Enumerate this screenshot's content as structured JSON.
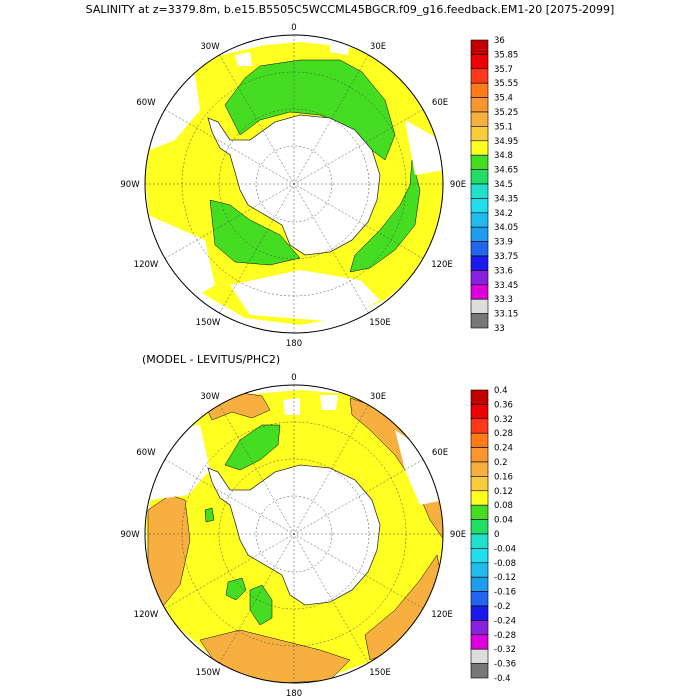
{
  "header": {
    "title": "SALINITY at z=3379.8m, b.e15.B5505C5WCCML45BGCR.f09_g16.feedback.EM1-20 [2075-2099]",
    "subtitle": "(MODEL - LEVITUS/PHC2)"
  },
  "maps": [
    {
      "name": "salinity",
      "lon_labels": [
        "0",
        "30E",
        "60E",
        "90E",
        "120E",
        "150E",
        "180",
        "150W",
        "120W",
        "90W",
        "60W",
        "30W"
      ],
      "colorbar": {
        "levels": [
          "36",
          "35.85",
          "35.7",
          "35.55",
          "35.4",
          "35.25",
          "35.1",
          "34.95",
          "34.8",
          "34.65",
          "34.5",
          "34.35",
          "34.2",
          "34.05",
          "33.9",
          "33.75",
          "33.6",
          "33.45",
          "33.3",
          "33.15",
          "33"
        ],
        "colors": [
          "#c00000",
          "#ee0000",
          "#ff3a1c",
          "#ff7a18",
          "#fa9530",
          "#f7b040",
          "#f8cc3c",
          "#ffff22",
          "#44dd22",
          "#22dd66",
          "#22e0cc",
          "#22ddee",
          "#22bbee",
          "#1e9cee",
          "#2266ee",
          "#1a1aee",
          "#8822dd",
          "#dd00dd",
          "#dddddd",
          "#777777"
        ]
      }
    },
    {
      "name": "difference",
      "lon_labels": [
        "0",
        "30E",
        "60E",
        "90E",
        "120E",
        "150E",
        "180",
        "150W",
        "120W",
        "90W",
        "60W",
        "30W"
      ],
      "colorbar": {
        "levels": [
          "0.4",
          "0.36",
          "0.32",
          "0.28",
          "0.24",
          "0.2",
          "0.16",
          "0.12",
          "0.08",
          "0.04",
          "0",
          "-0.04",
          "-0.08",
          "-0.12",
          "-0.16",
          "-0.2",
          "-0.24",
          "-0.28",
          "-0.32",
          "-0.36",
          "-0.4"
        ],
        "colors": [
          "#c00000",
          "#ee0000",
          "#ff3a1c",
          "#ff7a18",
          "#fa9530",
          "#f7b040",
          "#f8cc3c",
          "#ffff22",
          "#44dd22",
          "#22dd66",
          "#22e0cc",
          "#22ddee",
          "#22bbee",
          "#1e9cee",
          "#2266ee",
          "#1a1aee",
          "#8822dd",
          "#dd00dd",
          "#dddddd",
          "#777777"
        ]
      }
    }
  ]
}
